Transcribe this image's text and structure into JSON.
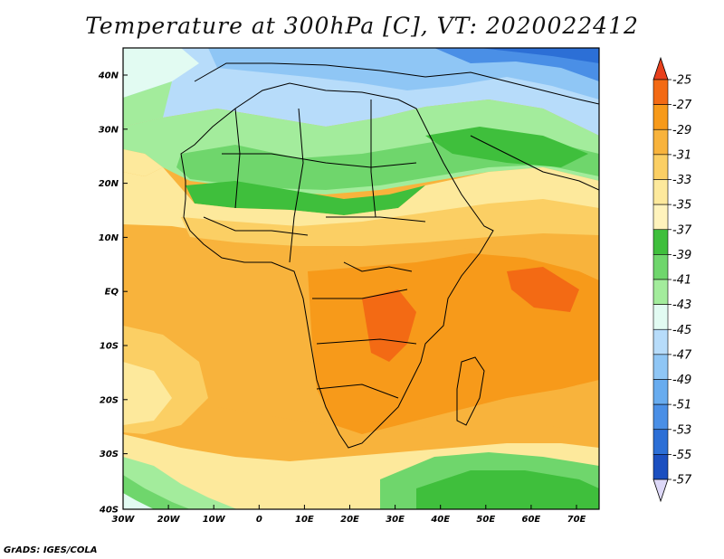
{
  "title": "Temperature at 300hPa [C], VT: 2020022412",
  "credit": "GrADS: IGES/COLA",
  "lat_ticks": [
    "40N",
    "30N",
    "20N",
    "10N",
    "EQ",
    "10S",
    "20S",
    "30S",
    "40S"
  ],
  "lon_ticks": [
    "30W",
    "20W",
    "10W",
    "0",
    "10E",
    "20E",
    "30E",
    "40E",
    "50E",
    "60E",
    "70E"
  ],
  "colorbar": {
    "labels": [
      "-25",
      "-27",
      "-29",
      "-31",
      "-33",
      "-35",
      "-37",
      "-39",
      "-41",
      "-43",
      "-45",
      "-47",
      "-49",
      "-51",
      "-53",
      "-55",
      "-57"
    ],
    "colors": [
      "#e8401c",
      "#f36a14",
      "#f79a1a",
      "#f8b33c",
      "#fbcf64",
      "#fde99c",
      "#fff3bc",
      "#3fbf3c",
      "#6fd66c",
      "#a3ec9c",
      "#e2fbf2",
      "#b7dcfa",
      "#8fc6f5",
      "#68acef",
      "#4a8fe6",
      "#2c6fd6",
      "#1b4fc0",
      "#0f34a4",
      "#0a1b78",
      "#ddd8f8"
    ]
  }
}
